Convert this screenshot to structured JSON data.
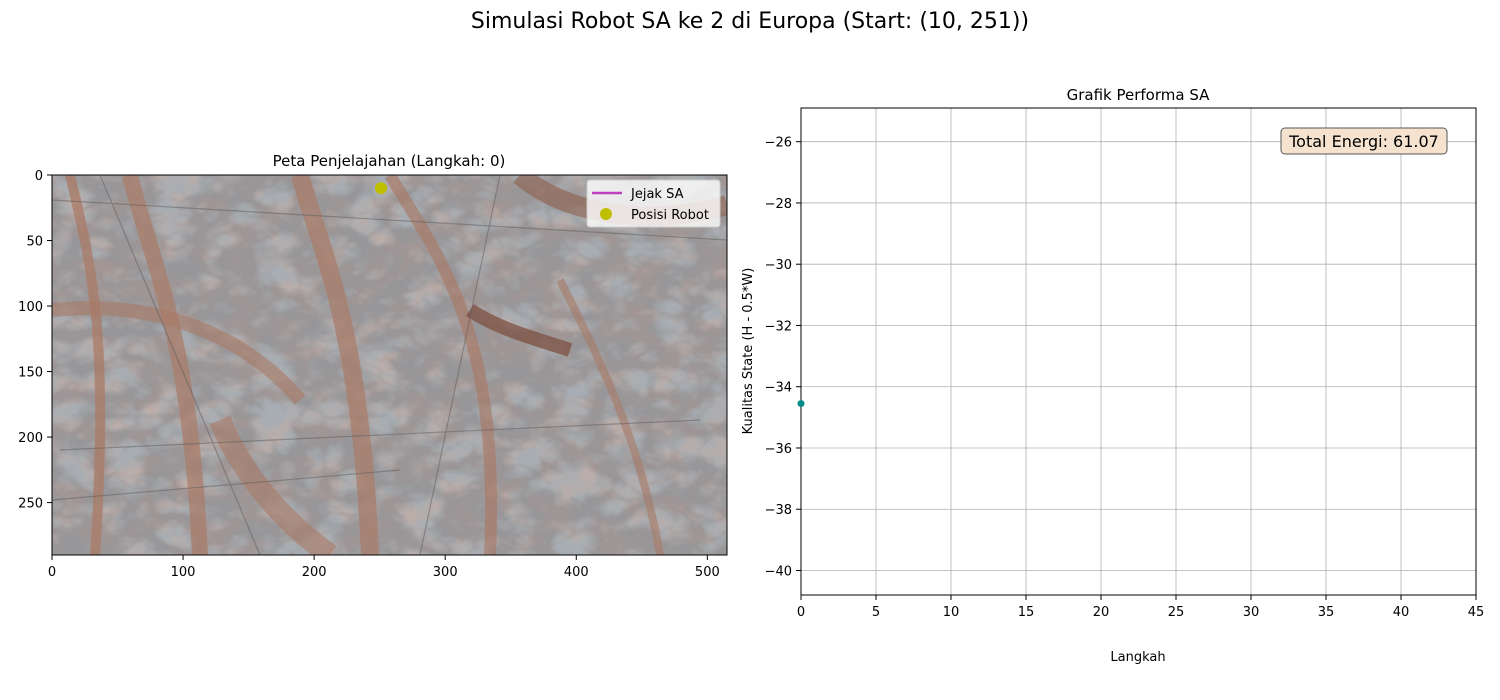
{
  "suptitle": "Simulasi Robot SA ke 2 di Europa (Start: (10, 251))",
  "chart_data": [
    {
      "type": "scatter",
      "title": "Peta Penjelajahan (Langkah: 0)",
      "xlabel": "",
      "ylabel": "",
      "xlim": [
        0,
        515
      ],
      "ylim": [
        290,
        0
      ],
      "xticks": [
        0,
        100,
        200,
        300,
        400,
        500
      ],
      "yticks": [
        0,
        50,
        100,
        150,
        200,
        250
      ],
      "background": "Europa surface image",
      "legend_position": "upper right",
      "series": [
        {
          "name": "Jejak SA",
          "kind": "line",
          "color": "#bf40bf",
          "points": []
        },
        {
          "name": "Posisi Robot",
          "kind": "marker",
          "color": "#bfbf00",
          "points": [
            {
              "x": 251,
              "y": 10
            }
          ]
        }
      ]
    },
    {
      "type": "line",
      "title": "Grafik Performa SA",
      "xlabel": "Langkah",
      "ylabel": "Kualitas State (H - 0.5*W)",
      "xlim": [
        0,
        45
      ],
      "ylim": [
        -40.8,
        -24.9
      ],
      "xticks": [
        0,
        5,
        10,
        15,
        20,
        25,
        30,
        35,
        40,
        45
      ],
      "yticks": [
        -40,
        -38,
        -36,
        -34,
        -32,
        -30,
        -28,
        -26
      ],
      "grid": true,
      "annotation": "Total Energi: 61.07",
      "annotation_position": "upper right",
      "series": [
        {
          "color": "#008b8b",
          "points": [
            {
              "x": 0,
              "y": -34.55
            }
          ]
        }
      ]
    }
  ]
}
